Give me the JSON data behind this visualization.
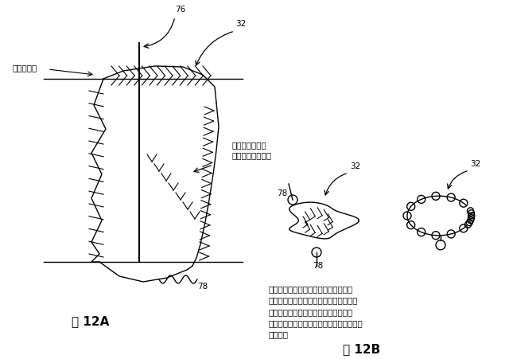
{
  "background_color": "#ffffff",
  "fig_width": 6.4,
  "fig_height": 4.52,
  "dpi": 100,
  "title_12A": "図 12A",
  "title_12B": "図 12B",
  "label_76": "76",
  "label_32_top": "32",
  "label_32_mid1": "32",
  "label_32_mid2": "32",
  "label_78_left": "78",
  "label_78_bottom": "78",
  "label_nakayori": "中寄り移動",
  "label_tanbu": "端部の戻り移動",
  "label_hikicho": "引張力による離脱",
  "caption": "閉螺旋状縫合により装着した定着用の\n縫合糸に引張力が作用している状況下に\nおいて、縫合糸の端部の戻り移動及び\n中寄り移動を阻止し、縫合糸の中心位置を\n維持する",
  "font_size_label": 7.5,
  "font_size_caption": 7.5,
  "font_size_title": 11,
  "text_color": "#000000"
}
